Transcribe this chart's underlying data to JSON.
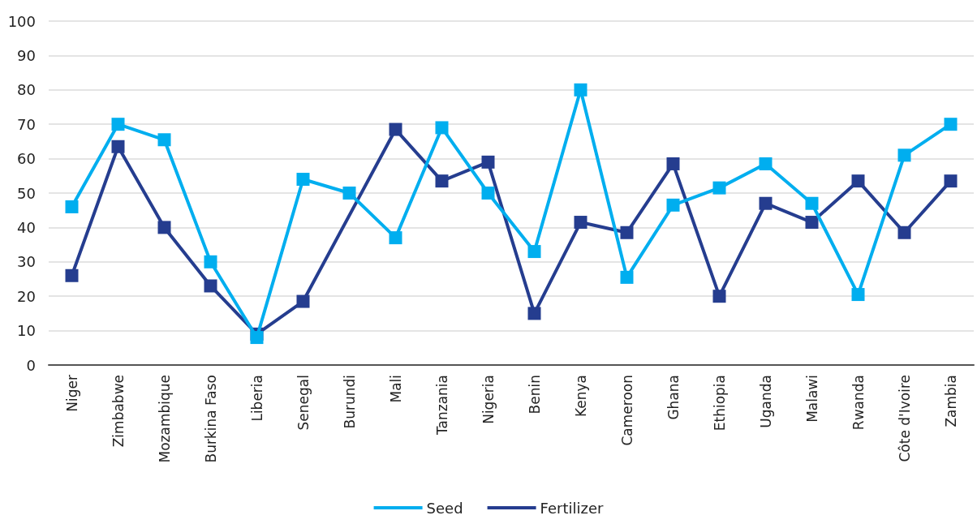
{
  "chart_data": {
    "type": "line",
    "categories": [
      "Niger",
      "Zimbabwe",
      "Mozambique",
      "Burkina Faso",
      "Liberia",
      "Senegal",
      "Burundi",
      "Mali",
      "Tanzania",
      "Nigeria",
      "Benin",
      "Kenya",
      "Cameroon",
      "Ghana",
      "Ethiopia",
      "Uganda",
      "Malawi",
      "Rwanda",
      "Côte d'Ivoire",
      "Zambia"
    ],
    "series": [
      {
        "name": "Seed",
        "color": "#00aeef",
        "values": [
          46,
          70,
          65.5,
          30,
          8,
          54,
          50,
          37,
          69,
          50,
          33,
          80,
          25.5,
          46.5,
          51.5,
          58.5,
          47,
          20.5,
          61,
          70
        ]
      },
      {
        "name": "Fertilizer",
        "color": "#253d8f",
        "values": [
          26,
          63.5,
          40,
          23,
          9,
          18.5,
          null,
          68.5,
          53.5,
          59,
          15,
          41.5,
          38.5,
          58.5,
          20,
          47,
          41.5,
          53.5,
          38.5,
          53.5
        ]
      }
    ],
    "ylim": [
      0,
      100
    ],
    "yticks": [
      0,
      10,
      20,
      30,
      40,
      50,
      60,
      70,
      80,
      90,
      100
    ],
    "grid": "y",
    "legend": "bottom",
    "marker": "square",
    "line_style": "solid"
  }
}
